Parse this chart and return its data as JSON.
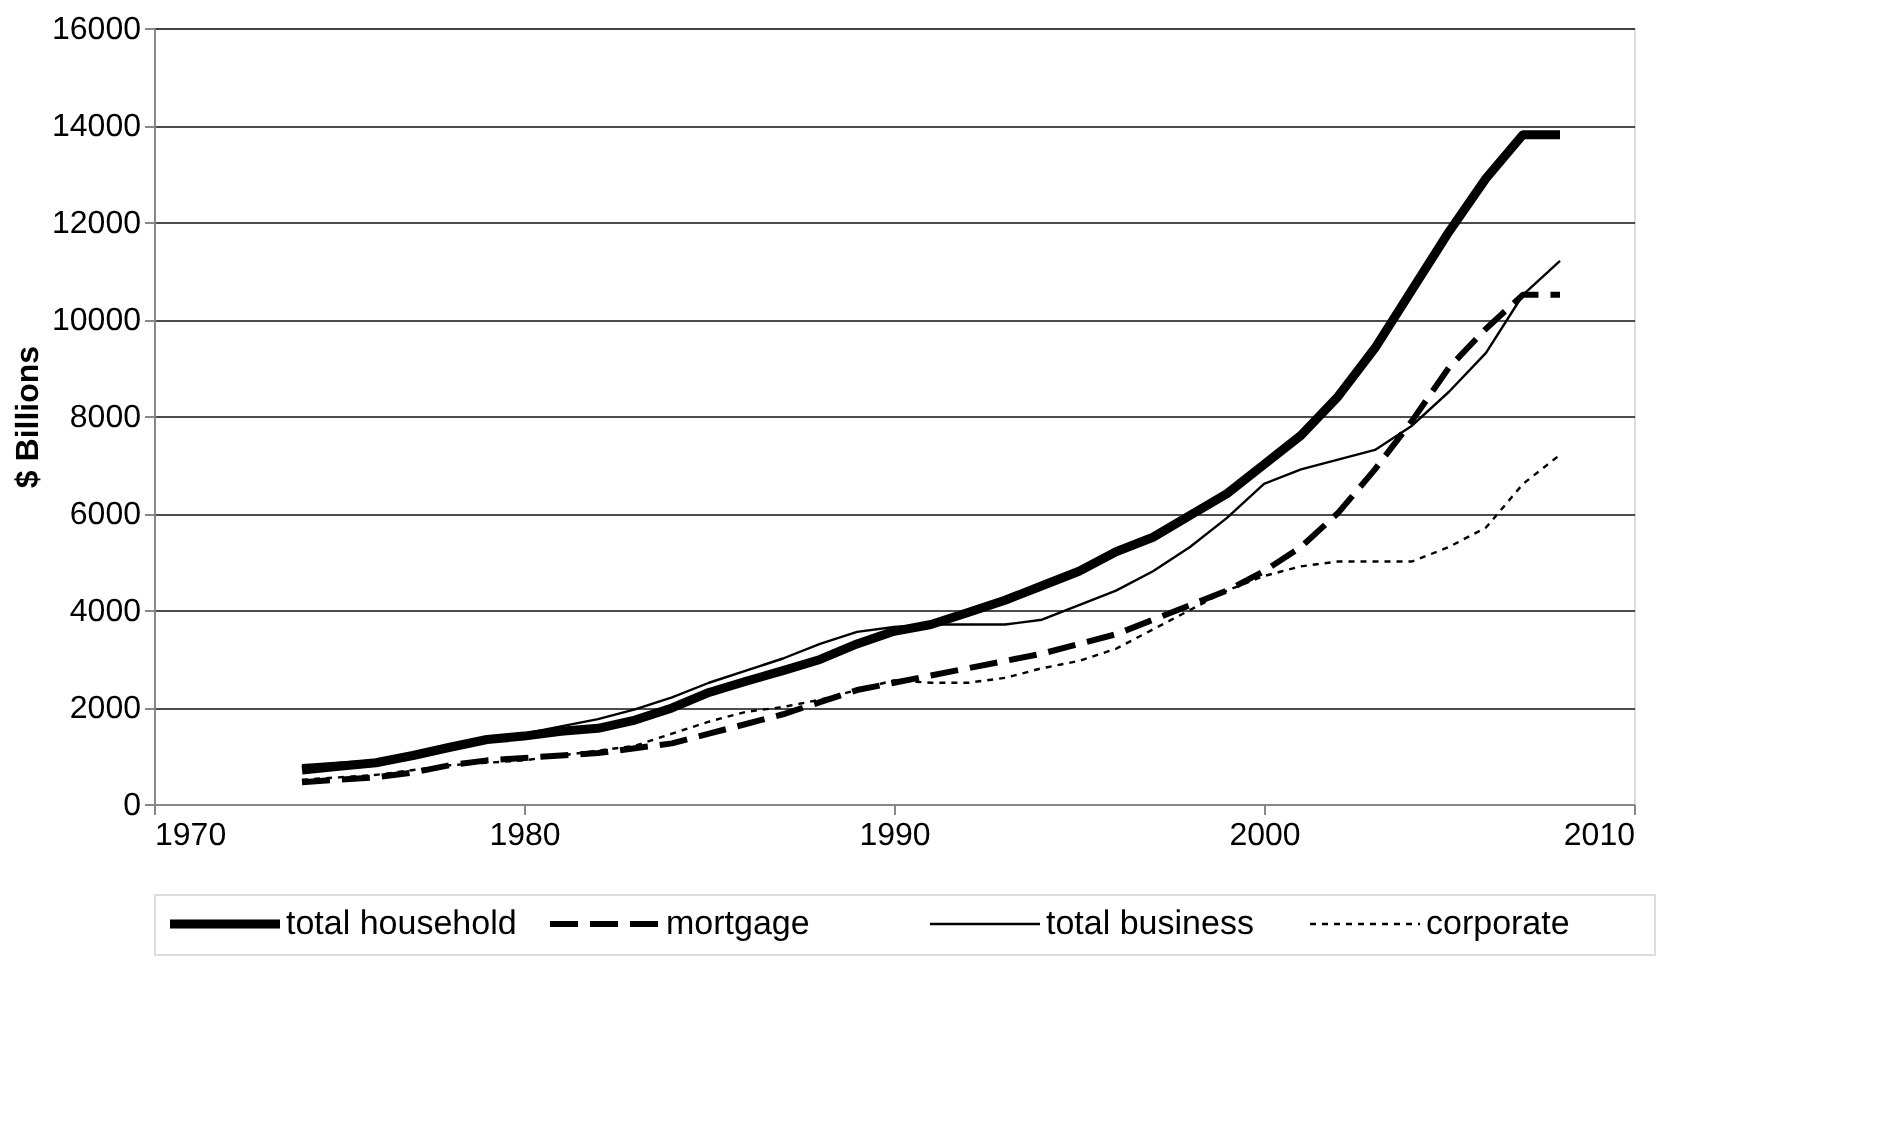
{
  "chart_data": {
    "type": "line",
    "ylabel": "$ Billions",
    "x": [
      1974,
      1975,
      1976,
      1977,
      1978,
      1979,
      1980,
      1981,
      1982,
      1983,
      1984,
      1985,
      1986,
      1987,
      1988,
      1989,
      1990,
      1991,
      1992,
      1993,
      1994,
      1995,
      1996,
      1997,
      1998,
      1999,
      2000,
      2001,
      2002,
      2003,
      2004,
      2005,
      2006,
      2007,
      2008
    ],
    "series": [
      {
        "name": "total household",
        "color": "#000000",
        "line_style": "solid",
        "values": [
          700,
          780,
          850,
          1000,
          1170,
          1330,
          1400,
          1500,
          1560,
          1730,
          1980,
          2300,
          2530,
          2750,
          2980,
          3300,
          3560,
          3700,
          3950,
          4200,
          4500,
          4800,
          5200,
          5500,
          5950,
          6400,
          7000,
          7600,
          8400,
          9400,
          10600,
          11800,
          12900,
          13800,
          13800
        ]
      },
      {
        "name": "mortgage",
        "color": "#000000",
        "line_style": "dashed",
        "values": [
          450,
          500,
          550,
          650,
          800,
          900,
          950,
          1000,
          1050,
          1150,
          1250,
          1450,
          1650,
          1850,
          2100,
          2350,
          2500,
          2650,
          2800,
          2950,
          3100,
          3300,
          3500,
          3800,
          4100,
          4400,
          4800,
          5300,
          6000,
          6900,
          7900,
          9000,
          9800,
          10500,
          10500
        ]
      },
      {
        "name": "total business",
        "color": "#000000",
        "line_style": "solid",
        "values": [
          800,
          850,
          900,
          1050,
          1200,
          1350,
          1450,
          1600,
          1750,
          1950,
          2200,
          2500,
          2750,
          3000,
          3300,
          3550,
          3650,
          3700,
          3700,
          3700,
          3800,
          4100,
          4400,
          4800,
          5300,
          5900,
          6600,
          6900,
          7100,
          7300,
          7800,
          8500,
          9300,
          10500,
          11200
        ]
      },
      {
        "name": "corporate",
        "color": "#000000",
        "line_style": "dotted",
        "values": [
          500,
          550,
          600,
          700,
          800,
          850,
          900,
          1000,
          1100,
          1200,
          1450,
          1700,
          1900,
          2000,
          2150,
          2350,
          2550,
          2500,
          2500,
          2600,
          2800,
          2950,
          3200,
          3600,
          4000,
          4400,
          4700,
          4900,
          5000,
          5000,
          5000,
          5300,
          5700,
          6600,
          7200
        ]
      }
    ],
    "xlim": [
      1970,
      2010
    ],
    "xticks": [
      1970,
      1980,
      1990,
      2000,
      2010
    ],
    "ylim": [
      0,
      16000
    ],
    "yticks": [
      0,
      2000,
      4000,
      6000,
      8000,
      10000,
      12000,
      14000,
      16000
    ],
    "grid": "y",
    "legend": "bottom",
    "marker": "none"
  }
}
